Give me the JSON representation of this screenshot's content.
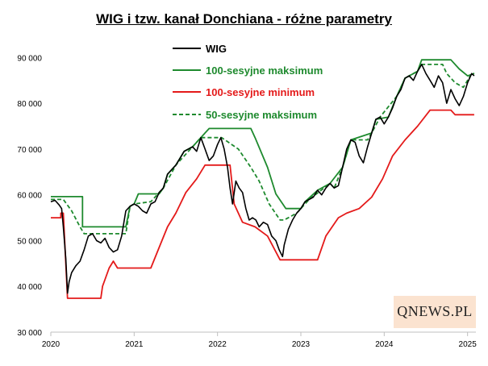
{
  "chart_data": {
    "type": "line",
    "title": "WIG i tzw. kanał Donchiana - różne parametry",
    "xlabel": "",
    "ylabel": "",
    "x_ticks": [
      "2020",
      "2021",
      "2022",
      "2023",
      "2024",
      "2025"
    ],
    "y_ticks": [
      "30 000",
      "40 000",
      "50 000",
      "60 000",
      "70 000",
      "80 000",
      "90 000"
    ],
    "xlim": [
      2020.0,
      2025.1
    ],
    "ylim": [
      30000,
      92000
    ],
    "grid": false,
    "legend_position": "top-center",
    "series": [
      {
        "name": "WIG",
        "color": "#000000",
        "style": "solid",
        "points": [
          [
            2020.0,
            58500
          ],
          [
            2020.05,
            58800
          ],
          [
            2020.1,
            57800
          ],
          [
            2020.13,
            57000
          ],
          [
            2020.15,
            53000
          ],
          [
            2020.18,
            46000
          ],
          [
            2020.2,
            38500
          ],
          [
            2020.22,
            41000
          ],
          [
            2020.25,
            43000
          ],
          [
            2020.3,
            44500
          ],
          [
            2020.35,
            45500
          ],
          [
            2020.4,
            48000
          ],
          [
            2020.45,
            51000
          ],
          [
            2020.5,
            51500
          ],
          [
            2020.55,
            50000
          ],
          [
            2020.6,
            49500
          ],
          [
            2020.65,
            50500
          ],
          [
            2020.7,
            48500
          ],
          [
            2020.75,
            47500
          ],
          [
            2020.8,
            48000
          ],
          [
            2020.85,
            51000
          ],
          [
            2020.9,
            56500
          ],
          [
            2020.95,
            57500
          ],
          [
            2021.0,
            58000
          ],
          [
            2021.05,
            57500
          ],
          [
            2021.1,
            56500
          ],
          [
            2021.15,
            56000
          ],
          [
            2021.2,
            58000
          ],
          [
            2021.25,
            58500
          ],
          [
            2021.3,
            60500
          ],
          [
            2021.35,
            61500
          ],
          [
            2021.4,
            64500
          ],
          [
            2021.45,
            65500
          ],
          [
            2021.5,
            66500
          ],
          [
            2021.55,
            68000
          ],
          [
            2021.6,
            69500
          ],
          [
            2021.65,
            70000
          ],
          [
            2021.7,
            70500
          ],
          [
            2021.75,
            69500
          ],
          [
            2021.8,
            72500
          ],
          [
            2021.85,
            70000
          ],
          [
            2021.9,
            67500
          ],
          [
            2021.95,
            68500
          ],
          [
            2022.0,
            71000
          ],
          [
            2022.04,
            72500
          ],
          [
            2022.08,
            70000
          ],
          [
            2022.12,
            66000
          ],
          [
            2022.15,
            61500
          ],
          [
            2022.18,
            58000
          ],
          [
            2022.22,
            63000
          ],
          [
            2022.26,
            61500
          ],
          [
            2022.3,
            60500
          ],
          [
            2022.34,
            57000
          ],
          [
            2022.38,
            54500
          ],
          [
            2022.42,
            55000
          ],
          [
            2022.46,
            54500
          ],
          [
            2022.5,
            53000
          ],
          [
            2022.55,
            54000
          ],
          [
            2022.6,
            53500
          ],
          [
            2022.65,
            51000
          ],
          [
            2022.7,
            50000
          ],
          [
            2022.74,
            48000
          ],
          [
            2022.78,
            46500
          ],
          [
            2022.8,
            49000
          ],
          [
            2022.85,
            52500
          ],
          [
            2022.9,
            54500
          ],
          [
            2022.95,
            56000
          ],
          [
            2023.0,
            57000
          ],
          [
            2023.05,
            58500
          ],
          [
            2023.1,
            59000
          ],
          [
            2023.15,
            59500
          ],
          [
            2023.2,
            61000
          ],
          [
            2023.25,
            60000
          ],
          [
            2023.3,
            61500
          ],
          [
            2023.35,
            62500
          ],
          [
            2023.4,
            61500
          ],
          [
            2023.45,
            62000
          ],
          [
            2023.5,
            66000
          ],
          [
            2023.55,
            70000
          ],
          [
            2023.6,
            72000
          ],
          [
            2023.65,
            71500
          ],
          [
            2023.7,
            68500
          ],
          [
            2023.75,
            67000
          ],
          [
            2023.8,
            70500
          ],
          [
            2023.85,
            73500
          ],
          [
            2023.9,
            76500
          ],
          [
            2023.95,
            77000
          ],
          [
            2024.0,
            75500
          ],
          [
            2024.05,
            77000
          ],
          [
            2024.1,
            79000
          ],
          [
            2024.15,
            81500
          ],
          [
            2024.2,
            83000
          ],
          [
            2024.25,
            85500
          ],
          [
            2024.3,
            86000
          ],
          [
            2024.35,
            85000
          ],
          [
            2024.4,
            87000
          ],
          [
            2024.45,
            88500
          ],
          [
            2024.5,
            86500
          ],
          [
            2024.55,
            85000
          ],
          [
            2024.6,
            83500
          ],
          [
            2024.65,
            86000
          ],
          [
            2024.7,
            84500
          ],
          [
            2024.75,
            80000
          ],
          [
            2024.8,
            83000
          ],
          [
            2024.85,
            81000
          ],
          [
            2024.9,
            79500
          ],
          [
            2024.95,
            81500
          ],
          [
            2025.0,
            84500
          ],
          [
            2025.05,
            86500
          ],
          [
            2025.08,
            86000
          ]
        ]
      },
      {
        "name": "100-sesyjne maksimum",
        "color": "#1e8a2e",
        "style": "solid",
        "points": [
          [
            2020.0,
            59600
          ],
          [
            2020.38,
            59600
          ],
          [
            2020.38,
            53000
          ],
          [
            2020.9,
            53000
          ],
          [
            2020.95,
            57500
          ],
          [
            2021.0,
            58000
          ],
          [
            2021.05,
            60200
          ],
          [
            2021.3,
            60200
          ],
          [
            2021.35,
            61500
          ],
          [
            2021.4,
            64500
          ],
          [
            2021.5,
            66500
          ],
          [
            2021.6,
            69500
          ],
          [
            2021.7,
            70500
          ],
          [
            2021.8,
            72500
          ],
          [
            2021.9,
            74500
          ],
          [
            2022.4,
            74500
          ],
          [
            2022.45,
            72500
          ],
          [
            2022.6,
            66000
          ],
          [
            2022.7,
            60200
          ],
          [
            2022.82,
            57000
          ],
          [
            2023.0,
            57000
          ],
          [
            2023.05,
            58500
          ],
          [
            2023.2,
            61000
          ],
          [
            2023.35,
            62500
          ],
          [
            2023.5,
            66000
          ],
          [
            2023.6,
            72000
          ],
          [
            2023.85,
            73500
          ],
          [
            2023.9,
            76500
          ],
          [
            2024.05,
            77000
          ],
          [
            2024.15,
            81500
          ],
          [
            2024.25,
            85500
          ],
          [
            2024.4,
            87000
          ],
          [
            2024.45,
            89500
          ],
          [
            2024.8,
            89500
          ],
          [
            2024.9,
            87500
          ],
          [
            2025.0,
            86000
          ],
          [
            2025.08,
            86500
          ]
        ]
      },
      {
        "name": "100-sesyjne minimum",
        "color": "#e41a1a",
        "style": "solid",
        "points": [
          [
            2020.0,
            55000
          ],
          [
            2020.12,
            55000
          ],
          [
            2020.12,
            56000
          ],
          [
            2020.15,
            56000
          ],
          [
            2020.2,
            37400
          ],
          [
            2020.6,
            37400
          ],
          [
            2020.62,
            40000
          ],
          [
            2020.7,
            44000
          ],
          [
            2020.75,
            45500
          ],
          [
            2020.8,
            44000
          ],
          [
            2021.0,
            44000
          ],
          [
            2021.2,
            44000
          ],
          [
            2021.3,
            48500
          ],
          [
            2021.4,
            53000
          ],
          [
            2021.5,
            56000
          ],
          [
            2021.62,
            60500
          ],
          [
            2021.75,
            63500
          ],
          [
            2021.85,
            66500
          ],
          [
            2022.15,
            66500
          ],
          [
            2022.2,
            58000
          ],
          [
            2022.3,
            54000
          ],
          [
            2022.45,
            53000
          ],
          [
            2022.6,
            51000
          ],
          [
            2022.75,
            45800
          ],
          [
            2023.2,
            45800
          ],
          [
            2023.3,
            51000
          ],
          [
            2023.45,
            55000
          ],
          [
            2023.55,
            56000
          ],
          [
            2023.7,
            57000
          ],
          [
            2023.85,
            59500
          ],
          [
            2023.98,
            63500
          ],
          [
            2024.1,
            68500
          ],
          [
            2024.25,
            72000
          ],
          [
            2024.4,
            75000
          ],
          [
            2024.55,
            78500
          ],
          [
            2024.8,
            78500
          ],
          [
            2024.85,
            77500
          ],
          [
            2025.08,
            77500
          ]
        ]
      },
      {
        "name": "50-sesyjne maksimum",
        "color": "#1e8a2e",
        "style": "dashed",
        "points": [
          [
            2020.0,
            59000
          ],
          [
            2020.15,
            59000
          ],
          [
            2020.25,
            56500
          ],
          [
            2020.35,
            53000
          ],
          [
            2020.4,
            51500
          ],
          [
            2020.9,
            51500
          ],
          [
            2020.95,
            57500
          ],
          [
            2021.0,
            58000
          ],
          [
            2021.2,
            58500
          ],
          [
            2021.35,
            61500
          ],
          [
            2021.5,
            66500
          ],
          [
            2021.7,
            70500
          ],
          [
            2021.8,
            72500
          ],
          [
            2022.05,
            72500
          ],
          [
            2022.25,
            70000
          ],
          [
            2022.4,
            66000
          ],
          [
            2022.5,
            63000
          ],
          [
            2022.62,
            58000
          ],
          [
            2022.75,
            54500
          ],
          [
            2022.8,
            54500
          ],
          [
            2022.95,
            56000
          ],
          [
            2023.1,
            59000
          ],
          [
            2023.35,
            62500
          ],
          [
            2023.4,
            61500
          ],
          [
            2023.5,
            66000
          ],
          [
            2023.6,
            72000
          ],
          [
            2023.8,
            72000
          ],
          [
            2023.85,
            73500
          ],
          [
            2023.95,
            77000
          ],
          [
            2024.15,
            81500
          ],
          [
            2024.25,
            85500
          ],
          [
            2024.4,
            87000
          ],
          [
            2024.45,
            88500
          ],
          [
            2024.7,
            88500
          ],
          [
            2024.75,
            86500
          ],
          [
            2024.85,
            84500
          ],
          [
            2024.95,
            83500
          ],
          [
            2025.05,
            86500
          ],
          [
            2025.08,
            86500
          ]
        ]
      }
    ]
  },
  "watermark": {
    "brand": "QNEWS.PL",
    "background": "#fbe3d0"
  }
}
